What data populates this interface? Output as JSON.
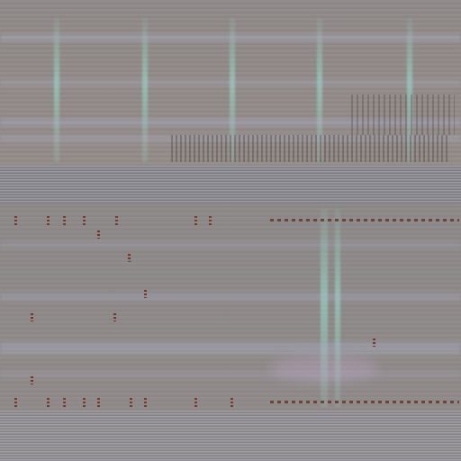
{
  "screen": {
    "description_colors": {
      "background": "#8f8a8d",
      "divider": "#9a9aa0",
      "stripe_accent": "#96e6d2",
      "band_accent": "#afb4d2",
      "mark_color": "#7a3a2c"
    },
    "text_content": []
  }
}
